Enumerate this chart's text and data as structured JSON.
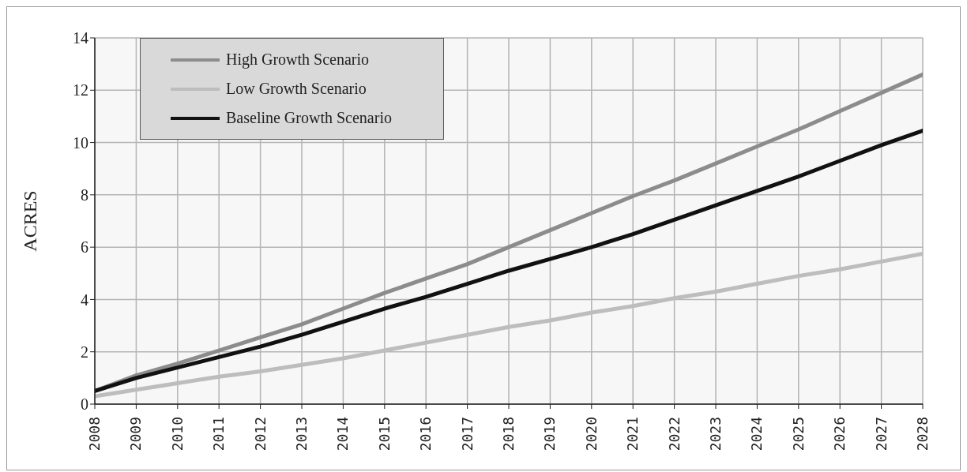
{
  "chart_data": {
    "type": "line",
    "ylabel": "ACRES",
    "categories": [
      "2008",
      "2009",
      "2010",
      "2011",
      "2012",
      "2013",
      "2014",
      "2015",
      "2016",
      "2017",
      "2018",
      "2019",
      "2020",
      "2021",
      "2022",
      "2023",
      "2024",
      "2025",
      "2026",
      "2027",
      "2028"
    ],
    "series": [
      {
        "name": "High Growth Scenario",
        "color": "#8c8c8c",
        "values": [
          0.5,
          1.1,
          1.55,
          2.05,
          2.55,
          3.05,
          3.65,
          4.25,
          4.8,
          5.35,
          6.0,
          6.65,
          7.3,
          7.95,
          8.55,
          9.2,
          9.85,
          10.5,
          11.2,
          11.9,
          12.6
        ]
      },
      {
        "name": "Low Growth Scenario",
        "color": "#bdbdbd",
        "values": [
          0.3,
          0.55,
          0.8,
          1.05,
          1.25,
          1.5,
          1.75,
          2.05,
          2.35,
          2.65,
          2.95,
          3.2,
          3.5,
          3.75,
          4.05,
          4.3,
          4.6,
          4.9,
          5.15,
          5.45,
          5.75
        ]
      },
      {
        "name": "Baseline Growth Scenario",
        "color": "#111111",
        "values": [
          0.5,
          1.0,
          1.4,
          1.8,
          2.2,
          2.65,
          3.15,
          3.65,
          4.1,
          4.6,
          5.1,
          5.55,
          6.0,
          6.5,
          7.05,
          7.6,
          8.15,
          8.7,
          9.3,
          9.9,
          10.45
        ]
      }
    ],
    "ylim": [
      0,
      14
    ],
    "yticks": [
      0,
      2,
      4,
      6,
      8,
      10,
      12,
      14
    ],
    "grid": true,
    "legend": "top left",
    "marker": "none"
  }
}
